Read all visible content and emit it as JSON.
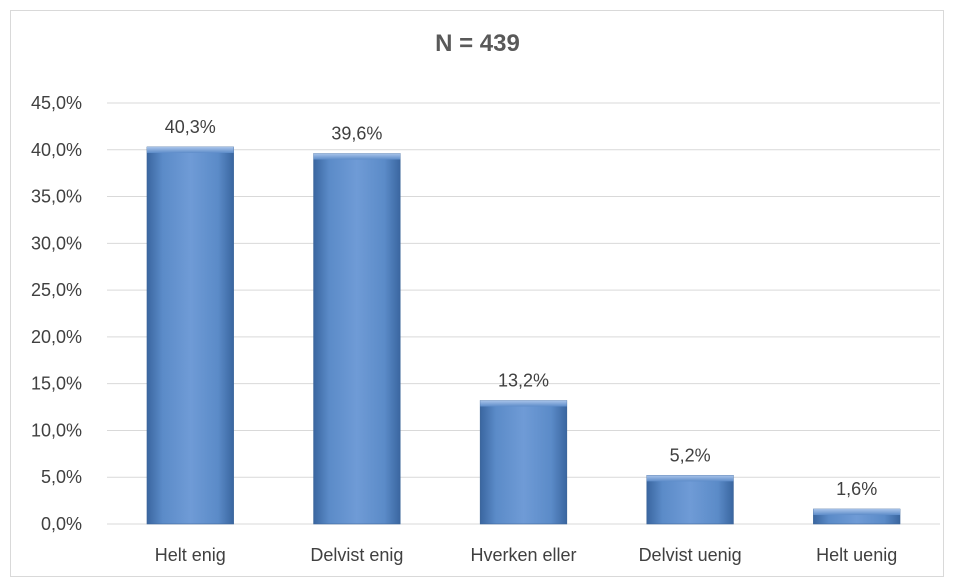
{
  "chart_data": {
    "type": "bar",
    "title": "N = 439",
    "categories": [
      "Helt enig",
      "Delvist enig",
      "Hverken eller",
      "Delvist uenig",
      "Helt uenig"
    ],
    "values": [
      40.3,
      39.6,
      13.2,
      5.2,
      1.6
    ],
    "data_labels": [
      "40,3%",
      "39,6%",
      "13,2%",
      "5,2%",
      "1,6%"
    ],
    "ylim": [
      0,
      45
    ],
    "yticks": [
      0,
      5,
      10,
      15,
      20,
      25,
      30,
      35,
      40,
      45
    ],
    "ytick_labels": [
      "0,0%",
      "5,0%",
      "10,0%",
      "15,0%",
      "20,0%",
      "25,0%",
      "30,0%",
      "35,0%",
      "40,0%",
      "45,0%"
    ],
    "grid": true,
    "legend": "none",
    "bar_color": "#4f81bd"
  }
}
